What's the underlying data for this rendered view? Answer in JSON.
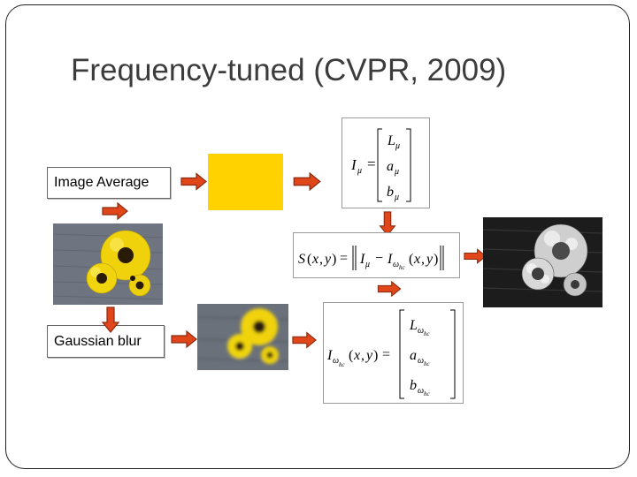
{
  "title": "Frequency-tuned (CVPR, 2009)",
  "labels": {
    "image_average": "Image Average",
    "gaussian_blur": "Gaussian blur"
  },
  "colors": {
    "average_swatch": "#ffd200",
    "arrow_fill": "#e0461a",
    "arrow_stroke": "#8c2a0f",
    "wood": "#6f7580",
    "petal": "#f5dc10",
    "flower_center": "#2a1a08"
  },
  "icons": [
    "arrow-right-icon",
    "arrow-down-icon"
  ]
}
